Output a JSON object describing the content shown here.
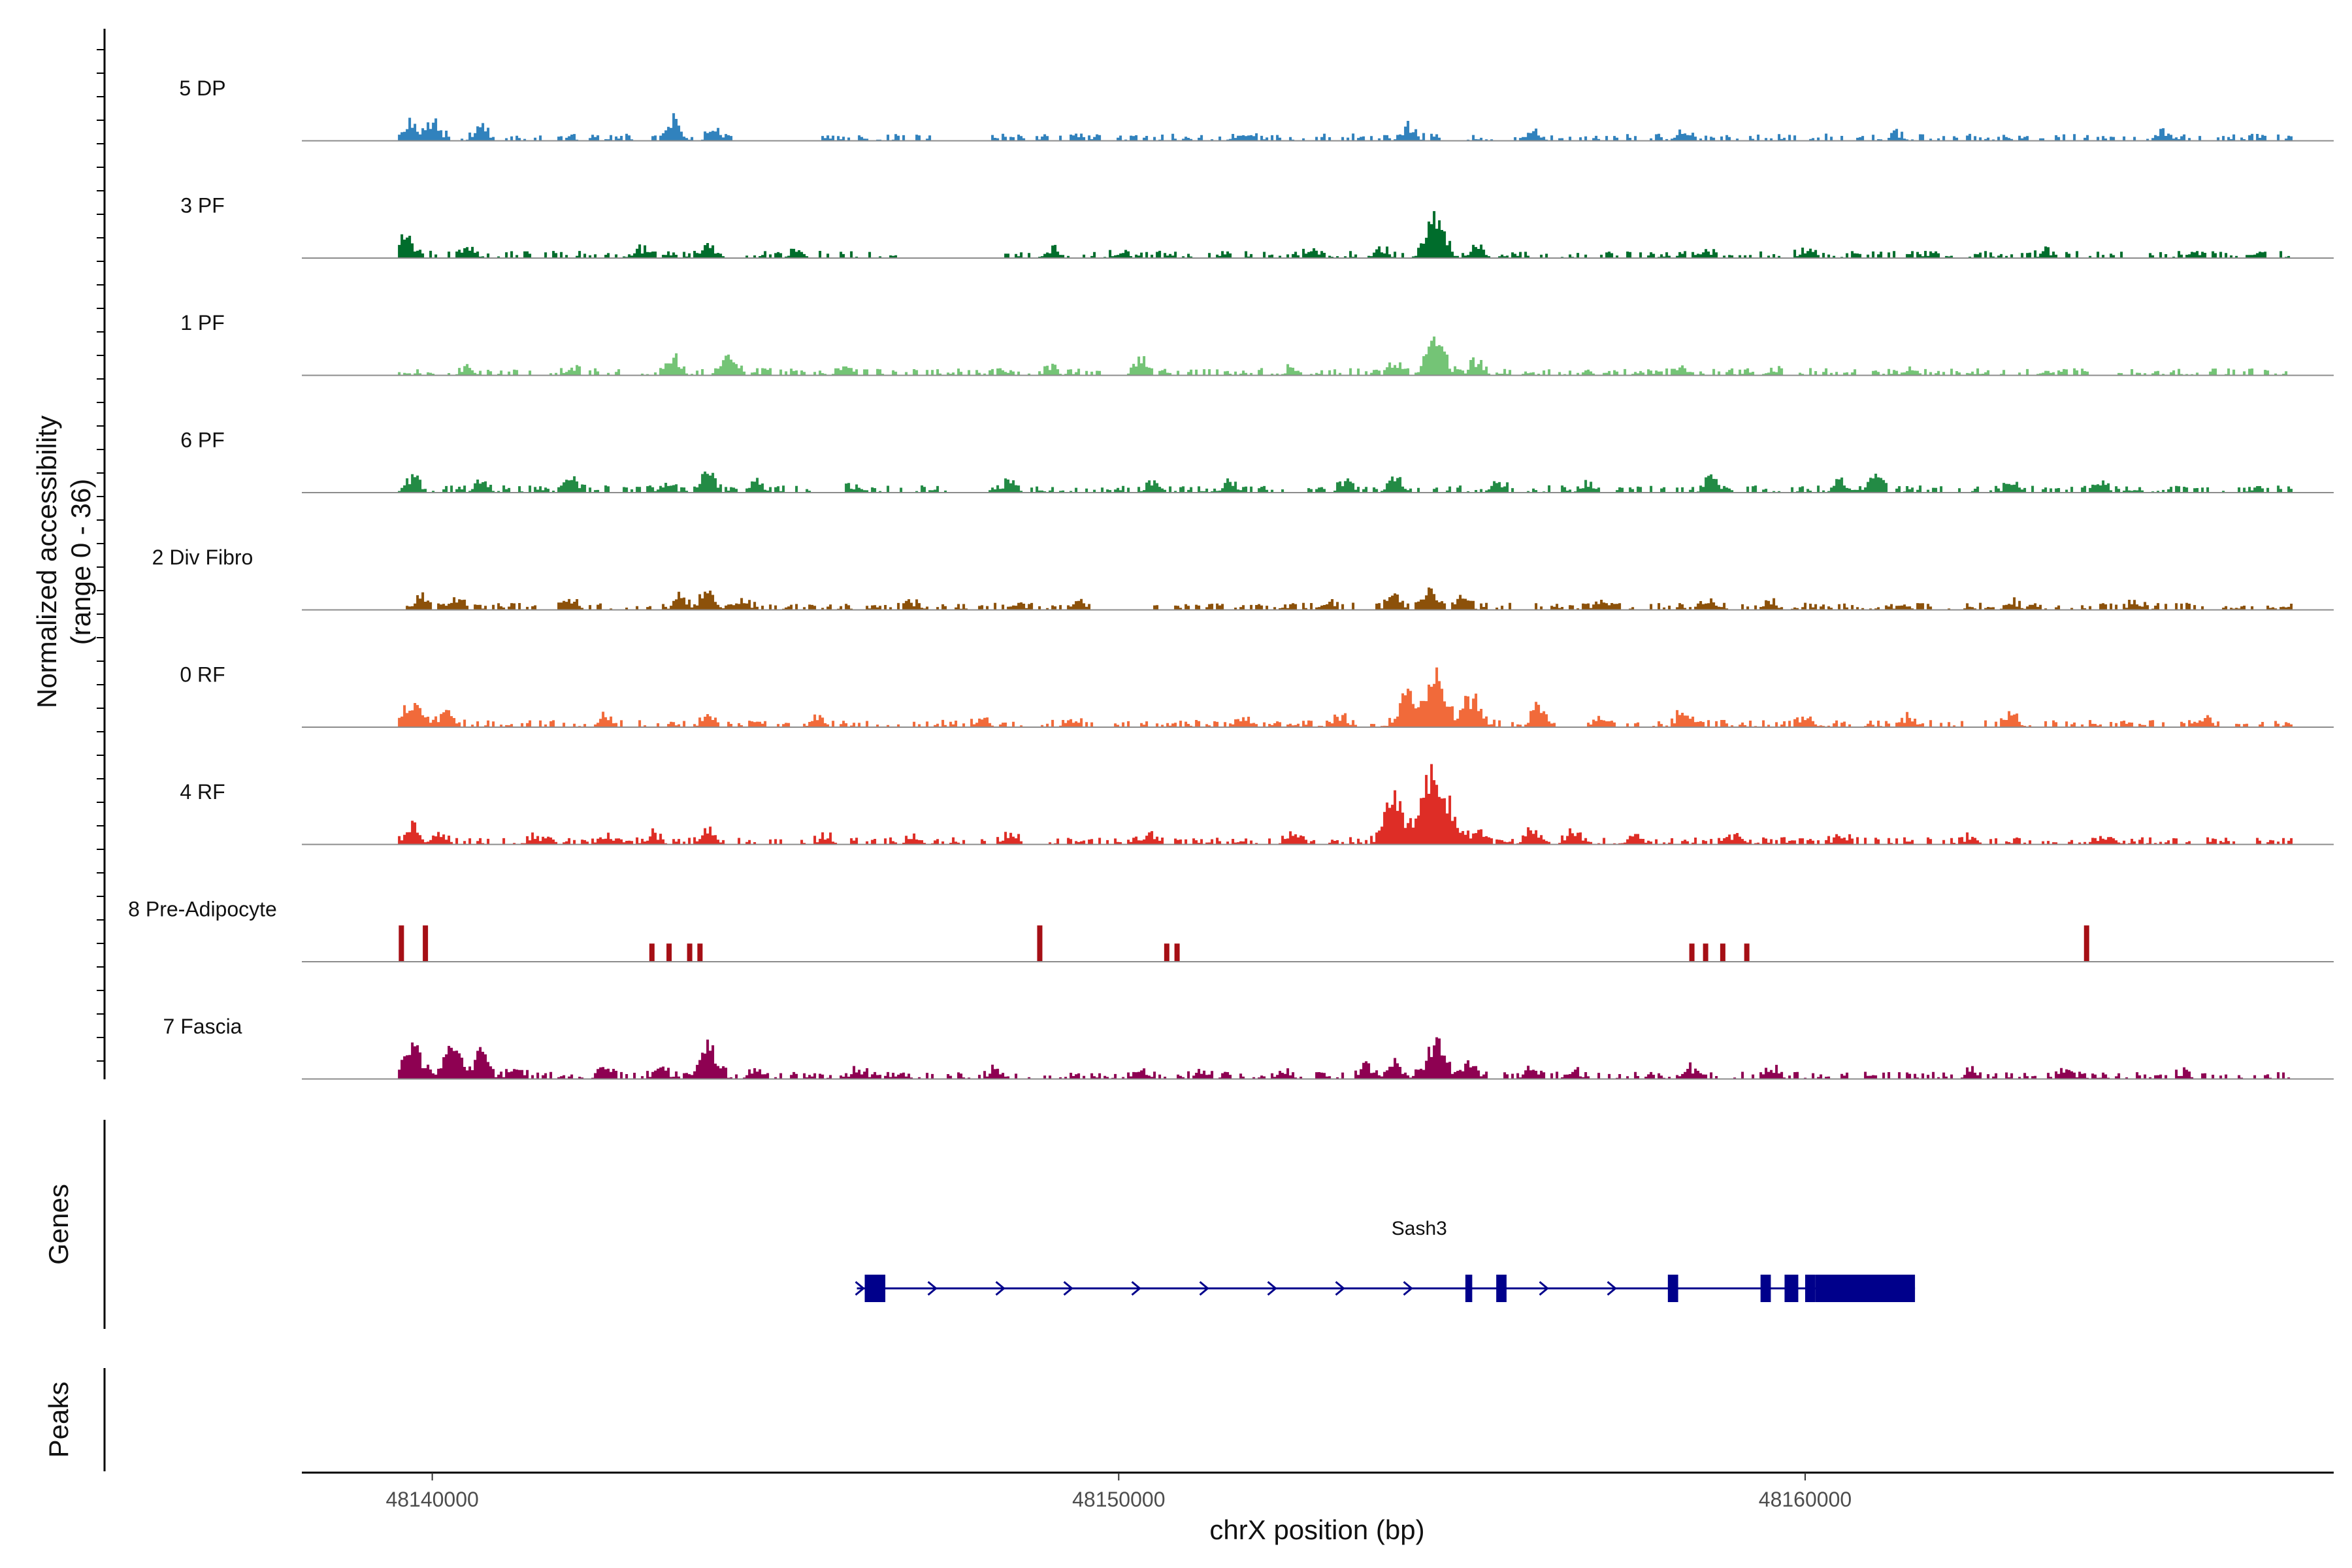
{
  "chart_data": {
    "type": "coverage",
    "y_axis_title_line1": "Normalized accessibility",
    "y_axis_title_line2": "(range 0 - 36)",
    "y_range": [
      0,
      36
    ],
    "x_axis_title": "chrX position (bp)",
    "x_range": [
      48138100,
      48167700
    ],
    "x_ticks": [
      48140000,
      48150000,
      48160000
    ],
    "x_tick_labels": [
      "48140000",
      "48150000",
      "48160000"
    ],
    "data_start": 48139500,
    "data_end": 48167100,
    "tracks": [
      {
        "name": "5 DP",
        "color": "#3182BD",
        "peaks": [
          [
            48139650,
            10
          ],
          [
            48140000,
            12
          ],
          [
            48140700,
            7
          ],
          [
            48143500,
            12
          ],
          [
            48144100,
            6
          ],
          [
            48151800,
            4
          ],
          [
            48154200,
            8
          ],
          [
            48156000,
            5
          ],
          [
            48158200,
            5
          ],
          [
            48161300,
            3
          ],
          [
            48165200,
            5
          ]
        ],
        "empty": [
          [
            48144400,
            48145600
          ],
          [
            48147300,
            48148000
          ]
        ]
      },
      {
        "name": "3 PF",
        "color": "#006D2C",
        "peaks": [
          [
            48139600,
            13
          ],
          [
            48140500,
            6
          ],
          [
            48143000,
            5
          ],
          [
            48144000,
            6
          ],
          [
            48145300,
            4
          ],
          [
            48149000,
            4
          ],
          [
            48150000,
            3
          ],
          [
            48152800,
            4
          ],
          [
            48153800,
            5
          ],
          [
            48154600,
            24
          ],
          [
            48155200,
            7
          ],
          [
            48158500,
            4
          ],
          [
            48160000,
            4
          ],
          [
            48163500,
            3
          ]
        ],
        "empty": [
          [
            48146800,
            48148200
          ]
        ]
      },
      {
        "name": "1 PF",
        "color": "#74C476",
        "peaks": [
          [
            48140500,
            3
          ],
          [
            48142000,
            3
          ],
          [
            48143500,
            9
          ],
          [
            48144300,
            11
          ],
          [
            48146000,
            6
          ],
          [
            48149000,
            3
          ],
          [
            48150300,
            8
          ],
          [
            48152500,
            3
          ],
          [
            48154000,
            6
          ],
          [
            48154600,
            21
          ],
          [
            48155200,
            8
          ],
          [
            48158200,
            4
          ],
          [
            48159500,
            3
          ],
          [
            48161500,
            3
          ],
          [
            48163500,
            2
          ]
        ],
        "empty": [
          [
            48140000,
            48140200
          ]
        ]
      },
      {
        "name": "6 PF",
        "color": "#238B45",
        "peaks": [
          [
            48139700,
            8
          ],
          [
            48140700,
            6
          ],
          [
            48142000,
            8
          ],
          [
            48143400,
            6
          ],
          [
            48144000,
            13
          ],
          [
            48144700,
            6
          ],
          [
            48146000,
            5
          ],
          [
            48148400,
            7
          ],
          [
            48150500,
            6
          ],
          [
            48151600,
            7
          ],
          [
            48153300,
            7
          ],
          [
            48154000,
            9
          ],
          [
            48155500,
            6
          ],
          [
            48156800,
            5
          ],
          [
            48158600,
            7
          ],
          [
            48160500,
            7
          ],
          [
            48161000,
            11
          ],
          [
            48163000,
            5
          ],
          [
            48164300,
            4
          ]
        ],
        "empty": [
          [
            48145600,
            48146000
          ],
          [
            48147500,
            48148000
          ],
          [
            48152400,
            48152700
          ]
        ]
      },
      {
        "name": "2 Div Fibro",
        "color": "#8C510A",
        "peaks": [
          [
            48139800,
            7
          ],
          [
            48140300,
            6
          ],
          [
            48142000,
            6
          ],
          [
            48143600,
            8
          ],
          [
            48144000,
            12
          ],
          [
            48144500,
            5
          ],
          [
            48147000,
            3
          ],
          [
            48148500,
            3
          ],
          [
            48149400,
            5
          ],
          [
            48153000,
            5
          ],
          [
            48154000,
            7
          ],
          [
            48154500,
            12
          ],
          [
            48155000,
            7
          ],
          [
            48157000,
            5
          ],
          [
            48158600,
            5
          ],
          [
            48159500,
            3
          ],
          [
            48161400,
            3
          ],
          [
            48163000,
            4
          ],
          [
            48164800,
            4
          ]
        ],
        "empty": [
          [
            48149600,
            48150500
          ],
          [
            48155700,
            48156000
          ]
        ]
      },
      {
        "name": "0 RF",
        "color": "#F16A3A",
        "peaks": [
          [
            48139700,
            16
          ],
          [
            48140200,
            9
          ],
          [
            48142500,
            5
          ],
          [
            48144000,
            5
          ],
          [
            48145600,
            5
          ],
          [
            48148000,
            5
          ],
          [
            48149300,
            4
          ],
          [
            48151800,
            4
          ],
          [
            48153200,
            6
          ],
          [
            48154200,
            20
          ],
          [
            48154600,
            32
          ],
          [
            48155100,
            18
          ],
          [
            48156100,
            12
          ],
          [
            48157000,
            7
          ],
          [
            48158200,
            8
          ],
          [
            48160000,
            6
          ],
          [
            48161500,
            5
          ],
          [
            48163000,
            6
          ],
          [
            48165800,
            5
          ]
        ],
        "empty": []
      },
      {
        "name": "4 RF",
        "color": "#DE2D26",
        "peaks": [
          [
            48139700,
            12
          ],
          [
            48140100,
            6
          ],
          [
            48141500,
            4
          ],
          [
            48142500,
            5
          ],
          [
            48143200,
            5
          ],
          [
            48144000,
            7
          ],
          [
            48145700,
            4
          ],
          [
            48147000,
            4
          ],
          [
            48148400,
            5
          ],
          [
            48150400,
            5
          ],
          [
            48152500,
            4
          ],
          [
            48154000,
            30
          ],
          [
            48154500,
            44
          ],
          [
            48154800,
            20
          ],
          [
            48155200,
            7
          ],
          [
            48156000,
            7
          ],
          [
            48156600,
            8
          ],
          [
            48157500,
            6
          ],
          [
            48159000,
            6
          ],
          [
            48160500,
            5
          ],
          [
            48162400,
            4
          ],
          [
            48164400,
            5
          ]
        ],
        "empty": []
      },
      {
        "name": "8 Pre-Adipocyte",
        "color": "#A50F15",
        "bars": [
          [
            48139550,
            20
          ],
          [
            48139900,
            20
          ],
          [
            48143200,
            10
          ],
          [
            48143450,
            10
          ],
          [
            48143750,
            10
          ],
          [
            48143900,
            10
          ],
          [
            48148850,
            20
          ],
          [
            48150700,
            10
          ],
          [
            48150850,
            10
          ],
          [
            48158350,
            10
          ],
          [
            48158550,
            10
          ],
          [
            48158800,
            10
          ],
          [
            48159150,
            10
          ],
          [
            48164100,
            20
          ]
        ]
      },
      {
        "name": "7 Fascia",
        "color": "#8E0152",
        "peaks": [
          [
            48139700,
            20
          ],
          [
            48140300,
            20
          ],
          [
            48140700,
            15
          ],
          [
            48141200,
            6
          ],
          [
            48142500,
            6
          ],
          [
            48143300,
            6
          ],
          [
            48144000,
            18
          ],
          [
            48144700,
            6
          ],
          [
            48146200,
            5
          ],
          [
            48148200,
            5
          ],
          [
            48150300,
            5
          ],
          [
            48151200,
            5
          ],
          [
            48152400,
            5
          ],
          [
            48153600,
            6
          ],
          [
            48154000,
            9
          ],
          [
            48154600,
            22
          ],
          [
            48155100,
            8
          ],
          [
            48156000,
            7
          ],
          [
            48156600,
            5
          ],
          [
            48158300,
            6
          ],
          [
            48159500,
            5
          ],
          [
            48162400,
            4
          ],
          [
            48163800,
            5
          ],
          [
            48165500,
            3
          ]
        ],
        "empty": []
      }
    ],
    "genes_panel_title": "Genes",
    "peaks_panel_title": "Peaks",
    "gene": {
      "name": "Sash3",
      "color": "#00008B",
      "start": 48146300,
      "end": 48161600,
      "strand": "+",
      "exons": [
        [
          48146300,
          48146600
        ],
        [
          48155050,
          48155150
        ],
        [
          48155500,
          48155650
        ],
        [
          48158000,
          48158150
        ],
        [
          48159350,
          48159500
        ],
        [
          48159700,
          48159900
        ],
        [
          48160000,
          48160150
        ],
        [
          48160150,
          48161600
        ]
      ]
    }
  }
}
